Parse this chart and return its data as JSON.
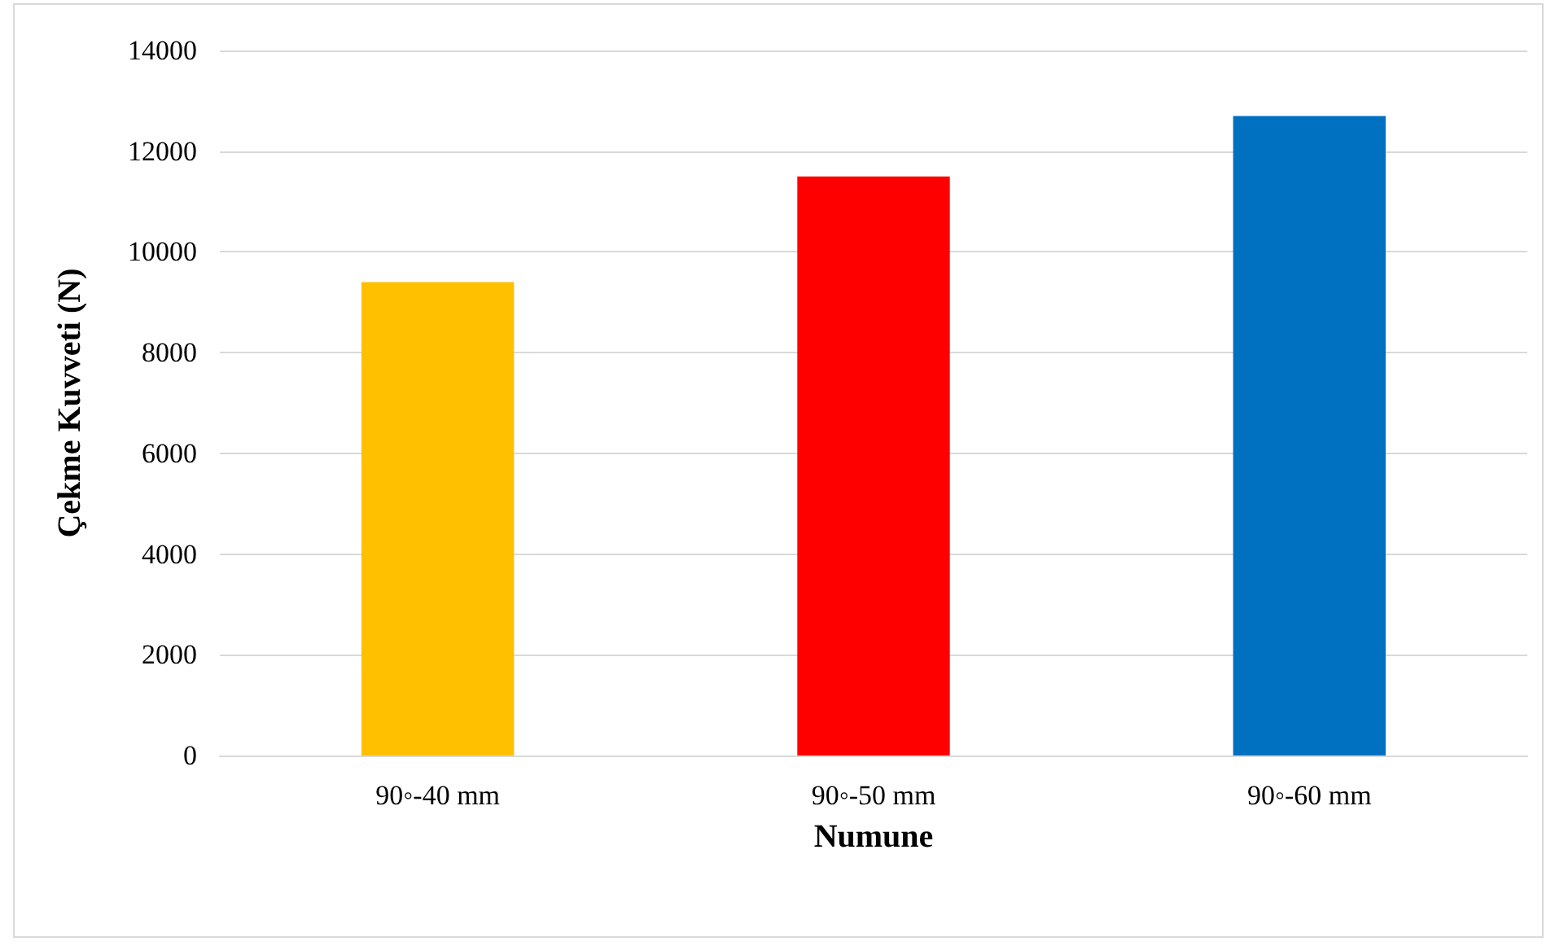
{
  "chart_data": {
    "type": "bar",
    "xlabel": "Numune",
    "ylabel": "Çekme Kuvveti (N)",
    "categories": [
      "90◦-40 mm",
      "90◦-50 mm",
      "90◦-60 mm"
    ],
    "values": [
      9400,
      11500,
      12700
    ],
    "colors": [
      "#ffc000",
      "#ff0000",
      "#0070c0"
    ],
    "ylim": [
      0,
      14000
    ],
    "yticks": [
      0,
      2000,
      4000,
      6000,
      8000,
      10000,
      12000,
      14000
    ],
    "grid": "y"
  }
}
